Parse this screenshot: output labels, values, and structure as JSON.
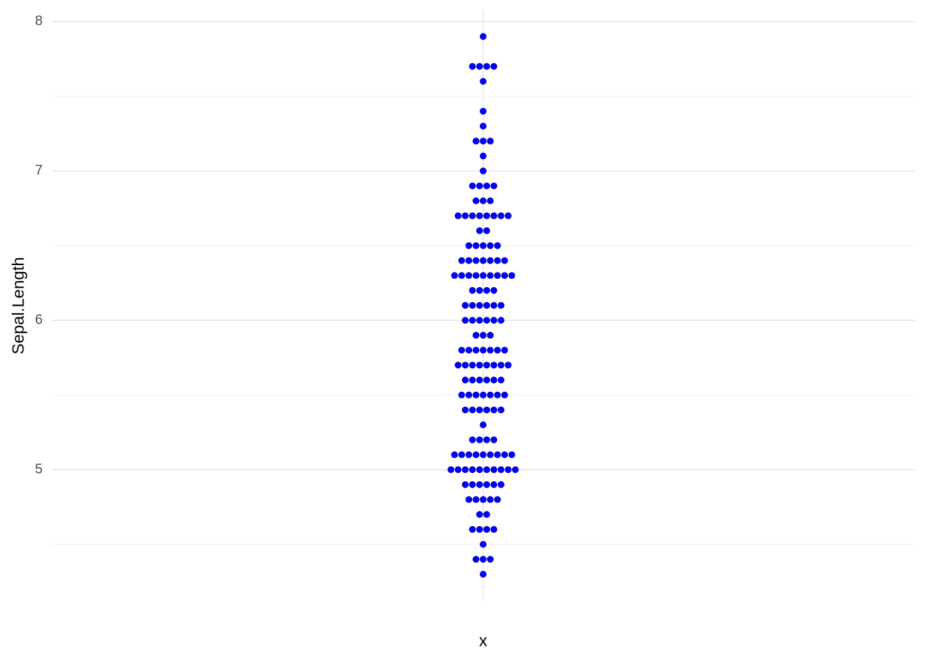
{
  "chart_data": {
    "type": "dotplot",
    "y_label": "Sepal.Length",
    "x_label": "x",
    "color": "#0000ff",
    "values": [
      4.3,
      4.4,
      4.4,
      4.4,
      4.5,
      4.6,
      4.6,
      4.6,
      4.6,
      4.7,
      4.7,
      4.8,
      4.8,
      4.8,
      4.8,
      4.8,
      4.9,
      4.9,
      4.9,
      4.9,
      4.9,
      4.9,
      5.0,
      5.0,
      5.0,
      5.0,
      5.0,
      5.0,
      5.0,
      5.0,
      5.0,
      5.0,
      5.1,
      5.1,
      5.1,
      5.1,
      5.1,
      5.1,
      5.1,
      5.1,
      5.1,
      5.2,
      5.2,
      5.2,
      5.2,
      5.3,
      5.4,
      5.4,
      5.4,
      5.4,
      5.4,
      5.4,
      5.5,
      5.5,
      5.5,
      5.5,
      5.5,
      5.5,
      5.5,
      5.6,
      5.6,
      5.6,
      5.6,
      5.6,
      5.6,
      5.7,
      5.7,
      5.7,
      5.7,
      5.7,
      5.7,
      5.7,
      5.7,
      5.8,
      5.8,
      5.8,
      5.8,
      5.8,
      5.8,
      5.8,
      5.9,
      5.9,
      5.9,
      6.0,
      6.0,
      6.0,
      6.0,
      6.0,
      6.0,
      6.1,
      6.1,
      6.1,
      6.1,
      6.1,
      6.1,
      6.2,
      6.2,
      6.2,
      6.2,
      6.3,
      6.3,
      6.3,
      6.3,
      6.3,
      6.3,
      6.3,
      6.3,
      6.3,
      6.4,
      6.4,
      6.4,
      6.4,
      6.4,
      6.4,
      6.4,
      6.5,
      6.5,
      6.5,
      6.5,
      6.5,
      6.6,
      6.6,
      6.7,
      6.7,
      6.7,
      6.7,
      6.7,
      6.7,
      6.7,
      6.7,
      6.8,
      6.8,
      6.8,
      6.9,
      6.9,
      6.9,
      6.9,
      7.0,
      7.1,
      7.2,
      7.2,
      7.2,
      7.3,
      7.4,
      7.6,
      7.7,
      7.7,
      7.7,
      7.7,
      7.9
    ],
    "ylim": [
      4.12,
      8.08
    ],
    "yticks": [
      5,
      6,
      7,
      8
    ],
    "yminor": [
      4.5,
      5.5,
      6.5,
      7.5
    ],
    "grid": true
  }
}
